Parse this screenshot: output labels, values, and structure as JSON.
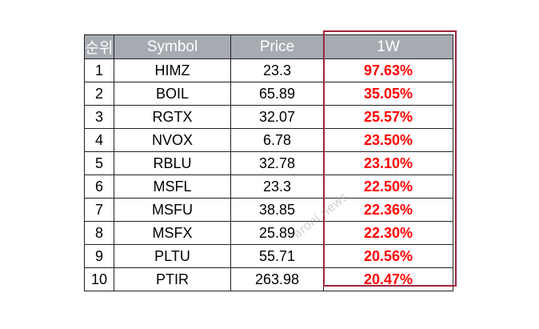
{
  "table": {
    "headers": {
      "rank": "순위",
      "symbol": "Symbol",
      "price": "Price",
      "return": "1W"
    },
    "rows": [
      {
        "rank": "1",
        "symbol": "HIMZ",
        "price": "23.3",
        "return": "97.63%"
      },
      {
        "rank": "2",
        "symbol": "BOIL",
        "price": "65.89",
        "return": "35.05%"
      },
      {
        "rank": "3",
        "symbol": "RGTX",
        "price": "32.07",
        "return": "25.57%"
      },
      {
        "rank": "4",
        "symbol": "NVOX",
        "price": "6.78",
        "return": "23.50%"
      },
      {
        "rank": "5",
        "symbol": "RBLU",
        "price": "32.78",
        "return": "23.10%"
      },
      {
        "rank": "6",
        "symbol": "MSFL",
        "price": "23.3",
        "return": "22.50%"
      },
      {
        "rank": "7",
        "symbol": "MSFU",
        "price": "38.85",
        "return": "22.36%"
      },
      {
        "rank": "8",
        "symbol": "MSFX",
        "price": "25.89",
        "return": "22.30%"
      },
      {
        "rank": "9",
        "symbol": "PLTU",
        "price": "55.71",
        "return": "20.56%"
      },
      {
        "rank": "10",
        "symbol": "PTIR",
        "price": "263.98",
        "return": "20.47%"
      }
    ]
  },
  "watermark": "aroni news",
  "colors": {
    "header_bg": "#a6abb2",
    "return_text": "#ff0000",
    "highlight_border": "#a0233c"
  }
}
